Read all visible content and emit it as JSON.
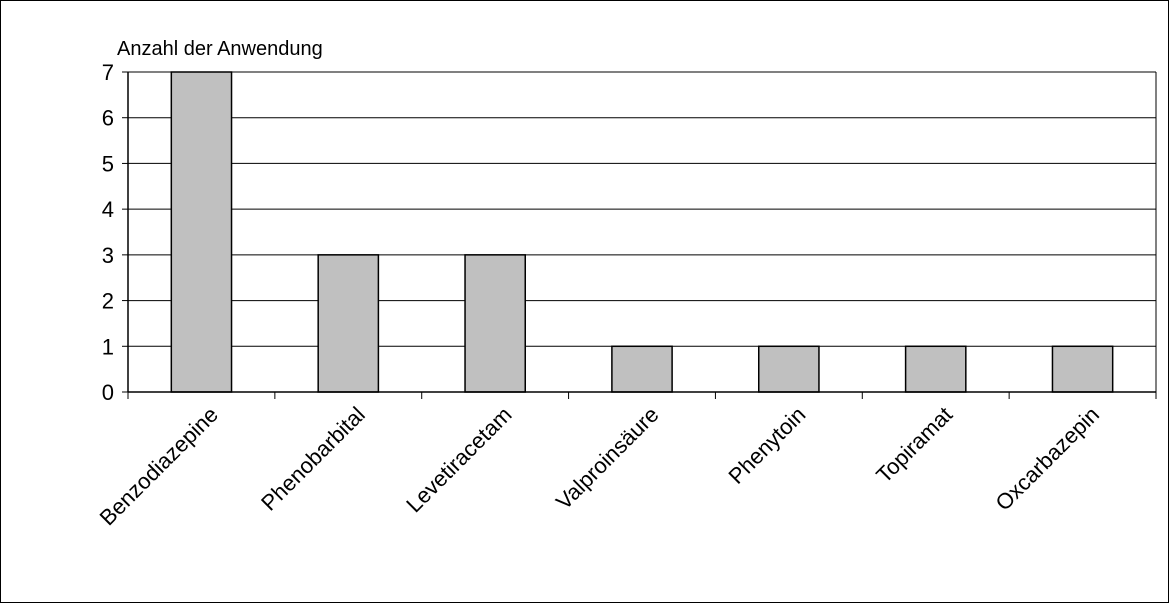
{
  "chart_data": {
    "type": "bar",
    "title": "",
    "ylabel": "Anzahl der Anwendung",
    "xlabel": "",
    "categories": [
      "Benzodiazepine",
      "Phenobarbital",
      "Levetiracetam",
      "Valproinsäure",
      "Phenytoin",
      "Topiramat",
      "Oxcarbazepin"
    ],
    "values": [
      7,
      3,
      3,
      1,
      1,
      1,
      1
    ],
    "ylim": [
      0,
      7
    ],
    "yticks": [
      0,
      1,
      2,
      3,
      4,
      5,
      6,
      7
    ],
    "grid": true,
    "legend": false,
    "bar_color": "#c0c0c0",
    "edge_color": "#000000"
  }
}
